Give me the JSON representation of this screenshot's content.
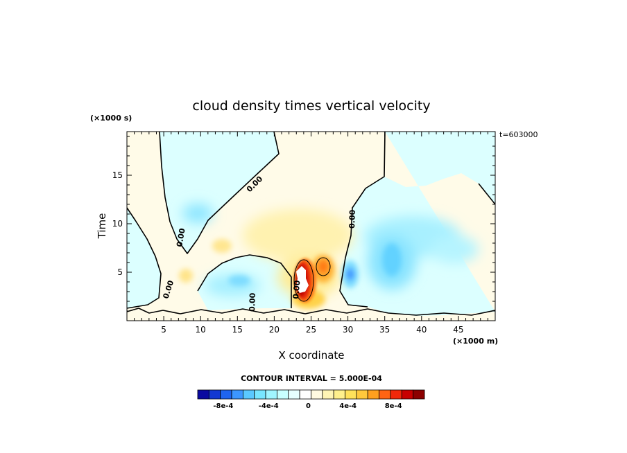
{
  "chart_data": {
    "type": "heatmap",
    "title": "cloud density times vertical velocity",
    "xlabel": "X coordinate",
    "ylabel": "Time",
    "x_unit": "(×1000 m)",
    "y_unit": "(×1000 s)",
    "time_stamp": "t=603000",
    "xlim": [
      0,
      50
    ],
    "ylim": [
      0,
      19.5
    ],
    "x_ticks": [
      "5",
      "10",
      "15",
      "20",
      "25",
      "30",
      "35",
      "40",
      "45"
    ],
    "y_ticks": [
      "5",
      "10",
      "15"
    ],
    "contour_labels": [
      "0.00",
      "0.00",
      "0.00",
      "0.00",
      "0.00",
      "0.00"
    ],
    "contour_interval_text": "CONTOUR INTERVAL = 5.000E-04",
    "colorbar": {
      "tick_labels": [
        "-8e-4",
        "-4e-4",
        "0",
        "4e-4",
        "8e-4"
      ],
      "colors": [
        "#0a0aa0",
        "#1238d2",
        "#1e64f0",
        "#3c96ff",
        "#5ac8ff",
        "#78e6ff",
        "#a0f5ff",
        "#c8ffff",
        "#e6ffff",
        "#ffffff",
        "#fffae0",
        "#fff5b4",
        "#fff08c",
        "#ffe15a",
        "#ffc83c",
        "#ffa01e",
        "#ff6414",
        "#f0280a",
        "#c80000",
        "#8c0000"
      ]
    },
    "features": [
      {
        "kind": "max",
        "x": 24.0,
        "y": 4.5,
        "value": "above 8e-4"
      },
      {
        "kind": "max",
        "x": 26.5,
        "y": 5.8,
        "value": "6e-4"
      },
      {
        "kind": "min",
        "x": 30.0,
        "y": 5.0,
        "value": "-6e-4"
      },
      {
        "kind": "min",
        "x": 36.5,
        "y": 6.0,
        "value": "-4e-4"
      }
    ]
  }
}
